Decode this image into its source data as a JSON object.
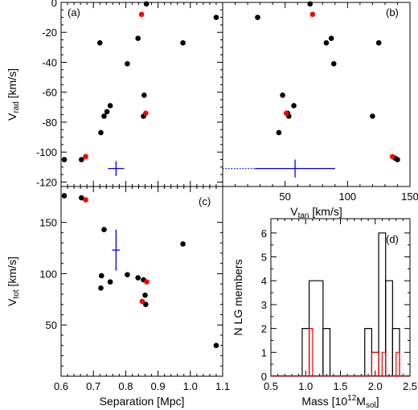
{
  "chart_data": [
    {
      "id": "a",
      "type": "scatter",
      "panel_label": "(a)",
      "xlim": [
        0.6,
        1.1
      ],
      "ylim": [
        -123,
        0
      ],
      "xticks": [
        0.6,
        0.7,
        0.8,
        0.9,
        1.0,
        1.1
      ],
      "yticks": [
        -120,
        -100,
        -80,
        -60,
        -40,
        -20,
        0
      ],
      "ylabel_main": "V",
      "ylabel_sub": "rad",
      "ylabel_unit": " [km/s]",
      "series": [
        {
          "color": "#000000",
          "points": [
            [
              0.61,
              -105
            ],
            [
              0.663,
              -105
            ],
            [
              0.723,
              -87
            ],
            [
              0.72,
              -27
            ],
            [
              0.733,
              -76
            ],
            [
              0.742,
              -73
            ],
            [
              0.752,
              -69
            ],
            [
              0.805,
              -41
            ],
            [
              0.838,
              -24
            ],
            [
              0.855,
              -76
            ],
            [
              0.857,
              -62
            ],
            [
              0.864,
              -1
            ],
            [
              0.977,
              -27
            ],
            [
              1.08,
              -10
            ]
          ]
        },
        {
          "color": "#ff0000",
          "points": [
            [
              0.676,
              -103
            ],
            [
              0.849,
              -8
            ],
            [
              0.862,
              -74
            ]
          ]
        }
      ],
      "error_cross": {
        "color": "#0000ff",
        "x": 0.77,
        "y": -111,
        "xerr": 0.025,
        "yerr": 5
      }
    },
    {
      "id": "b",
      "type": "scatter",
      "panel_label": "(b)",
      "xlim": [
        0,
        150
      ],
      "ylim": [
        -123,
        0
      ],
      "xticks": [
        0,
        50,
        100,
        150
      ],
      "xticklabels": [
        "",
        "50",
        "100",
        "150"
      ],
      "xlabel_main": "V",
      "xlabel_sub": "tan",
      "xlabel_unit": " [km/s]",
      "series": [
        {
          "color": "#000000",
          "points": [
            [
              28,
              -10
            ],
            [
              45,
              -87
            ],
            [
              48,
              -62
            ],
            [
              52,
              -74
            ],
            [
              53,
              -76
            ],
            [
              57,
              -69
            ],
            [
              70,
              -1
            ],
            [
              83,
              -27
            ],
            [
              87,
              -24
            ],
            [
              89,
              -41
            ],
            [
              120,
              -76
            ],
            [
              125,
              -27
            ],
            [
              138,
              -104
            ],
            [
              140,
              -105
            ]
          ]
        },
        {
          "color": "#ff0000",
          "points": [
            [
              51,
              -74
            ],
            [
              72,
              -8
            ],
            [
              136,
              -103
            ]
          ]
        }
      ],
      "error_cross": {
        "color": "#0000ff",
        "x": 58,
        "y": -111,
        "xerr": 32,
        "yerr": 6,
        "dotted_left_to": 0
      }
    },
    {
      "id": "c",
      "type": "scatter",
      "panel_label": "(c)",
      "xlim": [
        0.6,
        1.1
      ],
      "ylim": [
        0,
        185
      ],
      "xticks": [
        0.6,
        0.7,
        0.8,
        0.9,
        1.0,
        1.1
      ],
      "xticklabels": [
        "0.6",
        "0.7",
        "0.8",
        "0.9",
        "1.0",
        "1.1"
      ],
      "yticks": [
        0,
        50,
        100,
        150
      ],
      "yticklabels": [
        "",
        "50",
        "100",
        "150"
      ],
      "xlabel_main": "Separation [Mpc]",
      "ylabel_main": "V",
      "ylabel_sub": "tot",
      "ylabel_unit": " [km/s]",
      "series": [
        {
          "color": "#000000",
          "points": [
            [
              0.61,
              176
            ],
            [
              0.663,
              174
            ],
            [
              0.723,
              86
            ],
            [
              0.725,
              98
            ],
            [
              0.733,
              143
            ],
            [
              0.752,
              92
            ],
            [
              0.805,
              99
            ],
            [
              0.838,
              96
            ],
            [
              0.855,
              94
            ],
            [
              0.86,
              79
            ],
            [
              0.862,
              70
            ],
            [
              0.977,
              129
            ],
            [
              1.08,
              30
            ]
          ]
        },
        {
          "color": "#ff0000",
          "points": [
            [
              0.676,
              172
            ],
            [
              0.851,
              73
            ],
            [
              0.865,
              92
            ]
          ]
        }
      ],
      "error_cross": {
        "color": "#0000ff",
        "x": 0.77,
        "y": 123,
        "xerr": 0.012,
        "yerr": 20
      }
    },
    {
      "id": "d",
      "type": "histogram",
      "panel_label": "(d)",
      "xlim": [
        0.5,
        2.5
      ],
      "ylim": [
        0,
        6.6
      ],
      "xticks": [
        0.5,
        1.0,
        1.5,
        2.0,
        2.5
      ],
      "xticklabels": [
        "0.5",
        "1.0",
        "1.5",
        "2.0",
        "2.5"
      ],
      "yticks": [
        0,
        1,
        2,
        3,
        4,
        5,
        6
      ],
      "yticklabels": [
        "0",
        "1",
        "2",
        "3",
        "4",
        "5",
        "6"
      ],
      "xlabel_pre": "Mass [10",
      "xlabel_sup": "12",
      "xlabel_mid": "M",
      "xlabel_sub": "sol",
      "xlabel_post": "]",
      "ylabel_main": "N LG members",
      "series": [
        {
          "color": "#000000",
          "bins": [
            [
              0.95,
              1.05,
              2
            ],
            [
              1.05,
              1.25,
              4
            ],
            [
              1.25,
              1.35,
              2
            ],
            [
              1.85,
              1.95,
              2
            ],
            [
              1.95,
              2.05,
              1
            ],
            [
              2.05,
              2.15,
              6
            ],
            [
              2.15,
              2.25,
              4
            ],
            [
              2.25,
              2.35,
              2
            ]
          ]
        },
        {
          "color": "#ff0000",
          "bins": [
            [
              1.05,
              1.1,
              2
            ],
            [
              1.95,
              2.05,
              1
            ],
            [
              2.1,
              2.15,
              1
            ],
            [
              2.3,
              2.35,
              1
            ]
          ]
        }
      ]
    }
  ]
}
